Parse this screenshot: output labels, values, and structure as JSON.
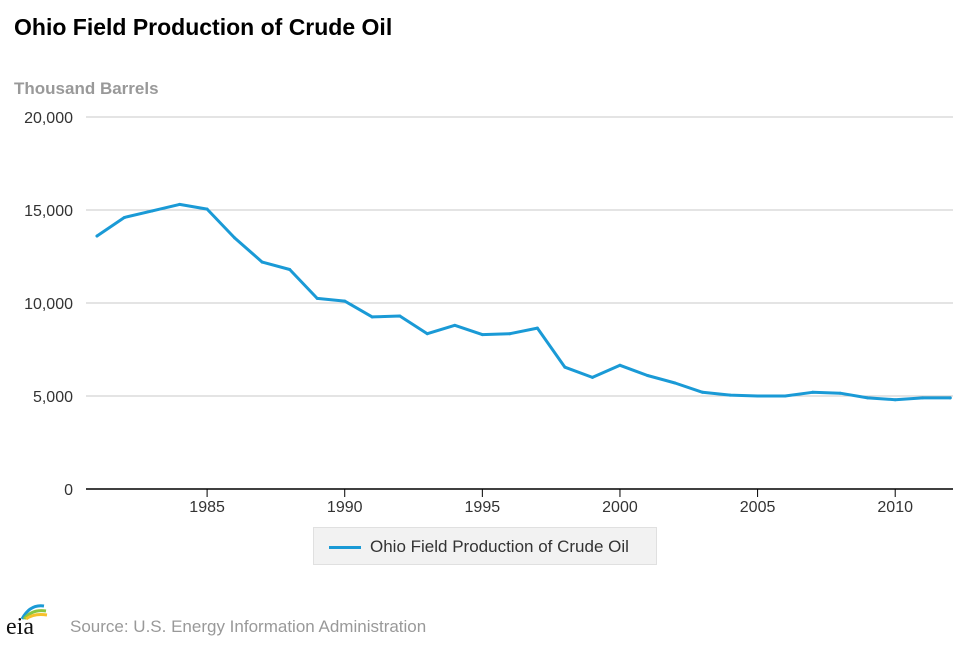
{
  "header": {
    "title": "Ohio Field Production of Crude Oil",
    "unit_label": "Thousand Barrels"
  },
  "chart_data": {
    "type": "line",
    "x": [
      1981,
      1982,
      1983,
      1984,
      1985,
      1986,
      1987,
      1988,
      1989,
      1990,
      1991,
      1992,
      1993,
      1994,
      1995,
      1996,
      1997,
      1998,
      1999,
      2000,
      2001,
      2002,
      2003,
      2004,
      2005,
      2006,
      2007,
      2008,
      2009,
      2010,
      2011,
      2012
    ],
    "series": [
      {
        "name": "Ohio Field Production of Crude Oil",
        "color": "#1a9ad6",
        "values": [
          13600,
          14600,
          14950,
          15300,
          15050,
          13500,
          12200,
          11800,
          10250,
          10100,
          9250,
          9300,
          8350,
          8800,
          8300,
          8350,
          8650,
          6550,
          6000,
          6650,
          6100,
          5700,
          5200,
          5050,
          5000,
          5000,
          5200,
          5150,
          4900,
          4800,
          4900,
          4900
        ]
      }
    ],
    "xlim": [
      1980.6,
      2012.1
    ],
    "ylim": [
      0,
      20000
    ],
    "yticks": [
      0,
      5000,
      10000,
      15000,
      20000
    ],
    "ytick_labels": [
      "0",
      "5,000",
      "10,000",
      "15,000",
      "20,000"
    ],
    "xticks": [
      1985,
      1990,
      1995,
      2000,
      2005,
      2010
    ],
    "xtick_labels": [
      "1985",
      "1990",
      "1995",
      "2000",
      "2005",
      "2010"
    ],
    "grid": true,
    "legend_placement": "bottom-center"
  },
  "legend": {
    "label": "Ohio Field Production of Crude Oil"
  },
  "footer": {
    "logo_text": "eia",
    "source": "Source: U.S. Energy Information Administration"
  },
  "colors": {
    "line": "#1a9ad6",
    "grid": "#c8c8c8",
    "axis": "#000000",
    "logo_blue": "#1a9ad6",
    "logo_green": "#8cc63f",
    "logo_yellow": "#f6c02b"
  }
}
